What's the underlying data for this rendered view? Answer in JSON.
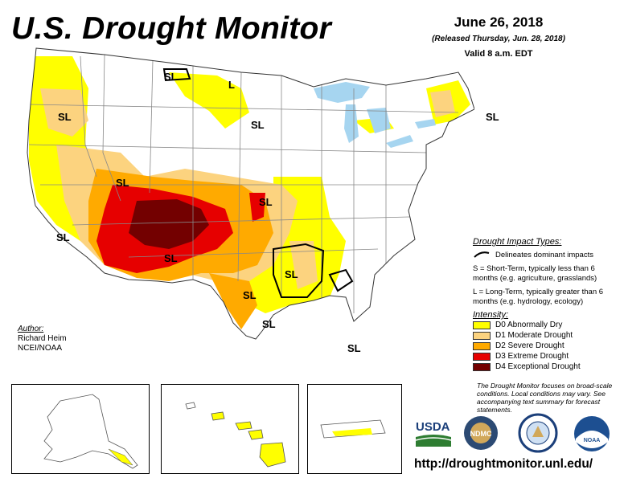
{
  "header": {
    "title": "U.S. Drought Monitor",
    "date": "June 26, 2018",
    "released": "(Released Thursday, Jun. 28, 2018)",
    "valid": "Valid 8 a.m. EDT"
  },
  "map": {
    "impact_labels": [
      "SL",
      "SL",
      "L",
      "SL",
      "SL",
      "SL",
      "SL",
      "SL",
      "SL",
      "SL",
      "SL",
      "SL",
      "SL"
    ],
    "colors": {
      "water": "#a6d5f0",
      "state_lines": "#888888",
      "d0": "#ffff00",
      "d1": "#fcd37f",
      "d2": "#ffaa00",
      "d3": "#e60000",
      "d4": "#730000"
    }
  },
  "impact_legend": {
    "title": "Drought Impact Types:",
    "delineates": "Delineates dominant impacts",
    "s_text": "S = Short-Term, typically less than 6 months (e.g. agriculture, grasslands)",
    "l_text": "L = Long-Term, typically greater than 6 months (e.g. hydrology, ecology)"
  },
  "intensity": {
    "title": "Intensity:",
    "levels": [
      {
        "label": "D0 Abnormally Dry",
        "color": "#ffff00"
      },
      {
        "label": "D1 Moderate Drought",
        "color": "#fcd37f"
      },
      {
        "label": "D2 Severe Drought",
        "color": "#ffaa00"
      },
      {
        "label": "D3 Extreme Drought",
        "color": "#e60000"
      },
      {
        "label": "D4 Exceptional Drought",
        "color": "#730000"
      }
    ]
  },
  "note": "The Drought Monitor focuses on broad-scale conditions. Local conditions may vary. See accompanying text summary for forecast statements.",
  "author": {
    "label": "Author:",
    "name": "Richard Heim",
    "org": "NCEI/NOAA"
  },
  "logos": {
    "usda": "USDA",
    "ndmc": "NDMC",
    "noaa": "NOAA"
  },
  "url": "http://droughtmonitor.unl.edu/"
}
